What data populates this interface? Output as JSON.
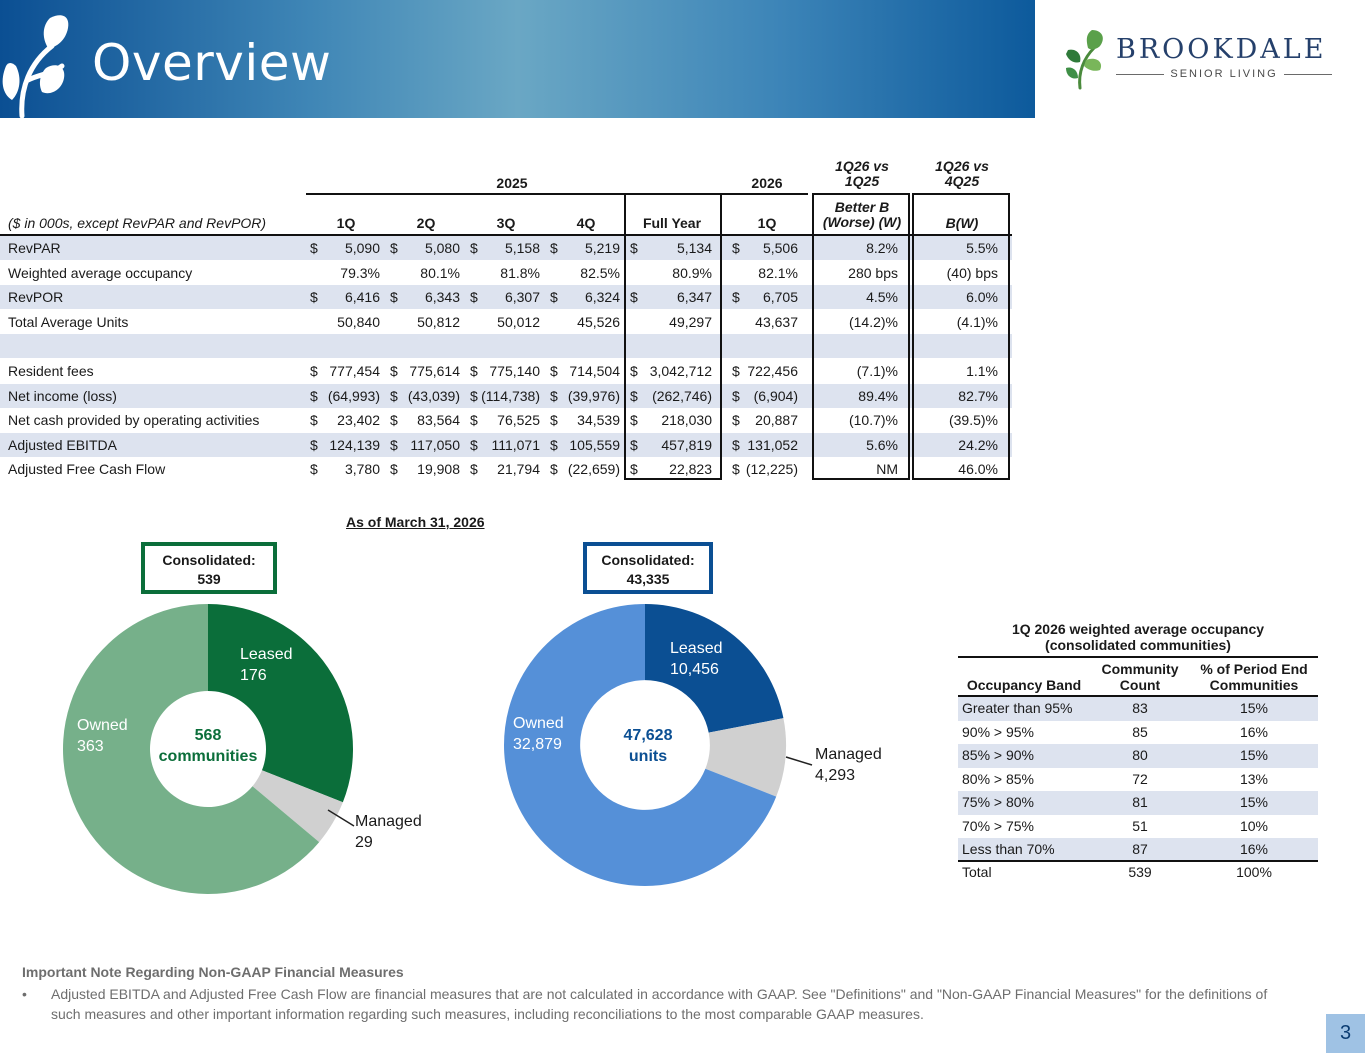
{
  "header": {
    "title": "Overview",
    "logo_name": "BROOKDALE",
    "logo_sub": "SENIOR LIVING"
  },
  "table": {
    "group_2025": "2025",
    "group_2026": "2026",
    "comp1_top": [
      "1Q26 vs",
      "1Q25"
    ],
    "comp2_top": [
      "1Q26 vs",
      "4Q25"
    ],
    "units_note": "($ in 000s, except RevPAR and RevPOR)",
    "col_heads": [
      "1Q",
      "2Q",
      "3Q",
      "4Q",
      "Full Year",
      "1Q"
    ],
    "comp1_head": [
      "Better B",
      "(Worse) (W)"
    ],
    "comp2_head": "B(W)",
    "rows": [
      {
        "label": "RevPAR",
        "cur": true,
        "values": [
          "5,090",
          "5,080",
          "5,158",
          "5,219",
          "5,134",
          "5,506"
        ],
        "comp1": "8.2%",
        "comp2": "5.5%"
      },
      {
        "label": "Weighted average occupancy",
        "cur": false,
        "values": [
          "79.3%",
          "80.1%",
          "81.8%",
          "82.5%",
          "80.9%",
          "82.1%"
        ],
        "comp1": "280 bps",
        "comp2": "(40) bps"
      },
      {
        "label": "RevPOR",
        "cur": true,
        "values": [
          "6,416",
          "6,343",
          "6,307",
          "6,324",
          "6,347",
          "6,705"
        ],
        "comp1": "4.5%",
        "comp2": "6.0%"
      },
      {
        "label": "Total Average Units",
        "cur": false,
        "values": [
          "50,840",
          "50,812",
          "50,012",
          "45,526",
          "49,297",
          "43,637"
        ],
        "comp1": "(14.2)%",
        "comp2": "(4.1)%"
      },
      {
        "label": "",
        "cur": false,
        "values": [
          "",
          "",
          "",
          "",
          "",
          ""
        ],
        "comp1": "",
        "comp2": ""
      },
      {
        "label": "Resident fees",
        "cur": true,
        "values": [
          "777,454",
          "775,614",
          "775,140",
          "714,504",
          "3,042,712",
          "722,456"
        ],
        "comp1": "(7.1)%",
        "comp2": "1.1%"
      },
      {
        "label": "Net income (loss)",
        "cur": true,
        "values": [
          "(64,993)",
          "(43,039)",
          "(114,738)",
          "(39,976)",
          "(262,746)",
          "(6,904)"
        ],
        "comp1": "89.4%",
        "comp2": "82.7%"
      },
      {
        "label": "Net cash provided by operating activities",
        "cur": true,
        "values": [
          "23,402",
          "83,564",
          "76,525",
          "34,539",
          "218,030",
          "20,887"
        ],
        "comp1": "(10.7)%",
        "comp2": "(39.5)%"
      },
      {
        "label": "Adjusted EBITDA",
        "cur": true,
        "values": [
          "124,139",
          "117,050",
          "111,071",
          "105,559",
          "457,819",
          "131,052"
        ],
        "comp1": "5.6%",
        "comp2": "24.2%"
      },
      {
        "label": "Adjusted Free Cash Flow",
        "cur": true,
        "values": [
          "3,780",
          "19,908",
          "21,794",
          "(22,659)",
          "22,823",
          "(12,225)"
        ],
        "comp1": "NM",
        "comp2": "46.0%"
      }
    ],
    "currency_symbol": "$"
  },
  "portfolio": {
    "as_of": "As of March 31, 2026",
    "communities": {
      "callout": [
        "Consolidated:",
        "539"
      ],
      "center": [
        "568",
        "communities"
      ],
      "colors": {
        "leased": "#0b6e3a",
        "managed": "#d0d0d0",
        "owned": "#76b08a"
      },
      "segments": [
        {
          "name": "Leased",
          "value": 176
        },
        {
          "name": "Managed",
          "value": 29
        },
        {
          "name": "Owned",
          "value": 363
        }
      ],
      "labels": {
        "leased": [
          "Leased",
          "176"
        ],
        "managed": [
          "Managed",
          "29"
        ],
        "owned": [
          "Owned",
          "363"
        ]
      }
    },
    "units": {
      "callout": [
        "Consolidated:",
        "43,335"
      ],
      "center": [
        "47,628",
        "units"
      ],
      "colors": {
        "leased": "#0b4f93",
        "managed": "#d0d0d0",
        "owned": "#5590d8"
      },
      "segments": [
        {
          "name": "Leased",
          "value": 10456
        },
        {
          "name": "Managed",
          "value": 4293
        },
        {
          "name": "Owned",
          "value": 32879
        }
      ],
      "labels": {
        "leased": [
          "Leased",
          "10,456"
        ],
        "managed": [
          "Managed",
          "4,293"
        ],
        "owned": [
          "Owned",
          "32,879"
        ]
      }
    }
  },
  "occupancy": {
    "title": [
      "1Q 2026 weighted average occupancy",
      "(consolidated communities)"
    ],
    "headers": {
      "band": "Occupancy Band",
      "count": [
        "Community",
        "Count"
      ],
      "pct": [
        "% of Period End",
        "Communities"
      ]
    },
    "rows": [
      {
        "band": "Greater than 95%",
        "count": "83",
        "pct": "15%"
      },
      {
        "band": "90% > 95%",
        "count": "85",
        "pct": "16%"
      },
      {
        "band": "85% > 90%",
        "count": "80",
        "pct": "15%"
      },
      {
        "band": "80% > 85%",
        "count": "72",
        "pct": "13%"
      },
      {
        "band": "75% > 80%",
        "count": "81",
        "pct": "15%"
      },
      {
        "band": "70% > 75%",
        "count": "51",
        "pct": "10%"
      },
      {
        "band": "Less than 70%",
        "count": "87",
        "pct": "16%"
      }
    ],
    "total": {
      "band": "Total",
      "count": "539",
      "pct": "100%"
    }
  },
  "footer": {
    "note_title": "Important Note Regarding Non-GAAP Financial Measures",
    "bullet": "•",
    "note_text": "Adjusted EBITDA and Adjusted Free Cash Flow are financial measures that are not calculated in accordance with GAAP. See \"Definitions\" and \"Non-GAAP Financial Measures\" for the definitions of such measures and other important information regarding such measures, including reconciliations to the most comparable GAAP measures.",
    "page_number": "3"
  }
}
